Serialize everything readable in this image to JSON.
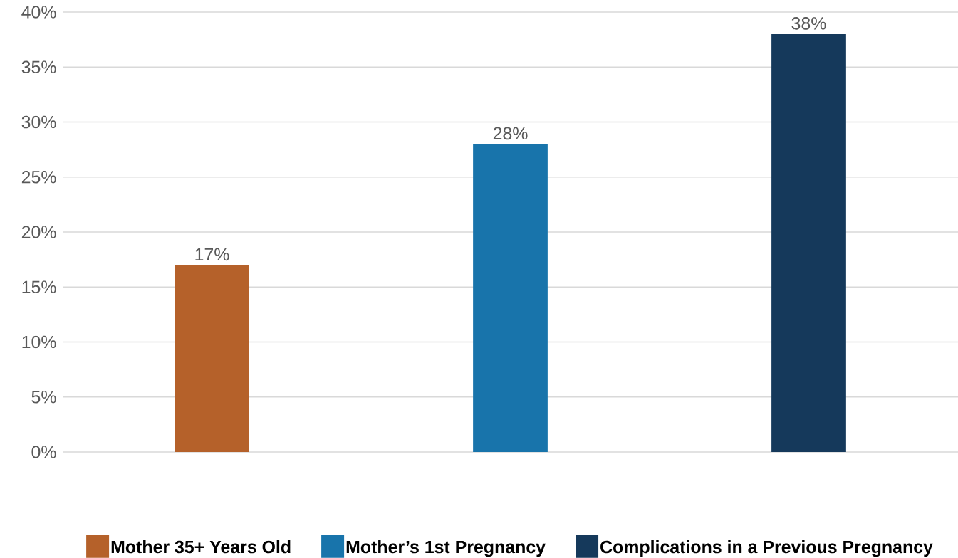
{
  "chart_data": {
    "type": "bar",
    "categories": [
      null,
      null,
      null
    ],
    "series": [
      {
        "name": "Mother 35+ Years Old",
        "color": "#b5612a",
        "values": [
          17,
          null,
          null
        ],
        "value_labels": [
          "17%",
          null,
          null
        ]
      },
      {
        "name": "Mother’s 1st Pregnancy",
        "color": "#1874ab",
        "values": [
          null,
          28,
          null
        ],
        "value_labels": [
          null,
          "28%",
          null
        ]
      },
      {
        "name": "Complications in a Previous Pregnancy",
        "color": "#15395b",
        "values": [
          null,
          null,
          38
        ],
        "value_labels": [
          null,
          null,
          "38%"
        ]
      }
    ],
    "ylim": [
      0,
      40
    ],
    "yticks": [
      {
        "value": 0,
        "label": "0%"
      },
      {
        "value": 5,
        "label": "5%"
      },
      {
        "value": 10,
        "label": "10%"
      },
      {
        "value": 15,
        "label": "15%"
      },
      {
        "value": 20,
        "label": "20%"
      },
      {
        "value": 25,
        "label": "25%"
      },
      {
        "value": 30,
        "label": "30%"
      },
      {
        "value": 35,
        "label": "35%"
      },
      {
        "value": 40,
        "label": "40%"
      }
    ],
    "grid": "y",
    "legend": "bottom"
  }
}
